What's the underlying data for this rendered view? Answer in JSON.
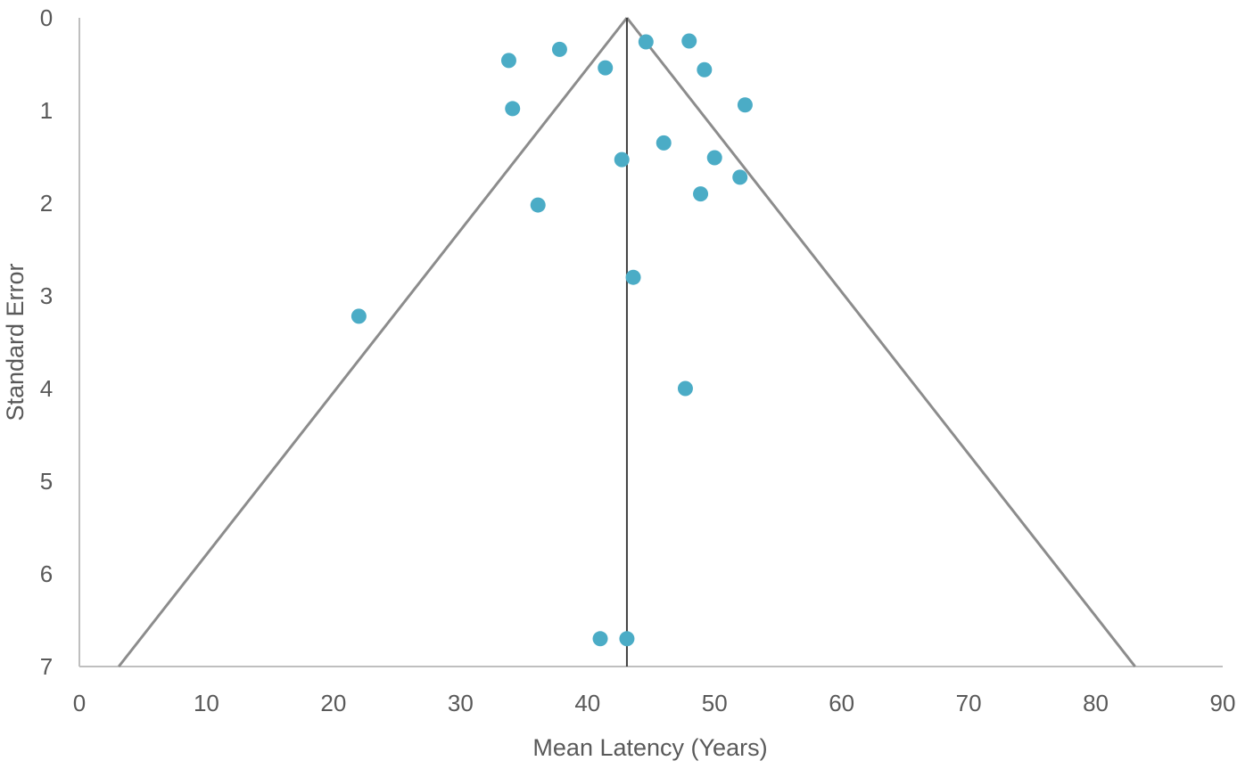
{
  "chart_data": {
    "type": "scatter",
    "title": "",
    "xlabel": "Mean Latency (Years)",
    "ylabel": "Standard Error",
    "xlim": [
      0,
      90
    ],
    "ylim": [
      0,
      7
    ],
    "y_inverted": true,
    "x_ticks": [
      "0",
      "10",
      "20",
      "30",
      "40",
      "50",
      "60",
      "70",
      "80",
      "90"
    ],
    "y_ticks": [
      "0",
      "1",
      "2",
      "3",
      "4",
      "5",
      "6",
      "7"
    ],
    "grid": false,
    "legend": "none",
    "point_color": "#4BACC6",
    "funnel_color": "#8C8C8C",
    "axis_color": "#BFBFBF",
    "center_line_color": "#404040",
    "center_line_x": 43.1,
    "funnel": {
      "apex": [
        43.1,
        0
      ],
      "left_base": [
        3.1,
        7
      ],
      "right_base": [
        83.1,
        7
      ]
    },
    "points": [
      {
        "x": 33.8,
        "y": 0.46
      },
      {
        "x": 37.8,
        "y": 0.34
      },
      {
        "x": 41.4,
        "y": 0.54
      },
      {
        "x": 44.6,
        "y": 0.26
      },
      {
        "x": 48.0,
        "y": 0.25
      },
      {
        "x": 49.2,
        "y": 0.56
      },
      {
        "x": 34.1,
        "y": 0.98
      },
      {
        "x": 52.4,
        "y": 0.94
      },
      {
        "x": 46.0,
        "y": 1.35
      },
      {
        "x": 42.7,
        "y": 1.53
      },
      {
        "x": 50.0,
        "y": 1.51
      },
      {
        "x": 52.0,
        "y": 1.72
      },
      {
        "x": 48.9,
        "y": 1.9
      },
      {
        "x": 36.1,
        "y": 2.02
      },
      {
        "x": 43.6,
        "y": 2.8
      },
      {
        "x": 22.0,
        "y": 3.22
      },
      {
        "x": 47.7,
        "y": 4.0
      },
      {
        "x": 41.0,
        "y": 6.7
      },
      {
        "x": 43.1,
        "y": 6.7
      }
    ]
  }
}
